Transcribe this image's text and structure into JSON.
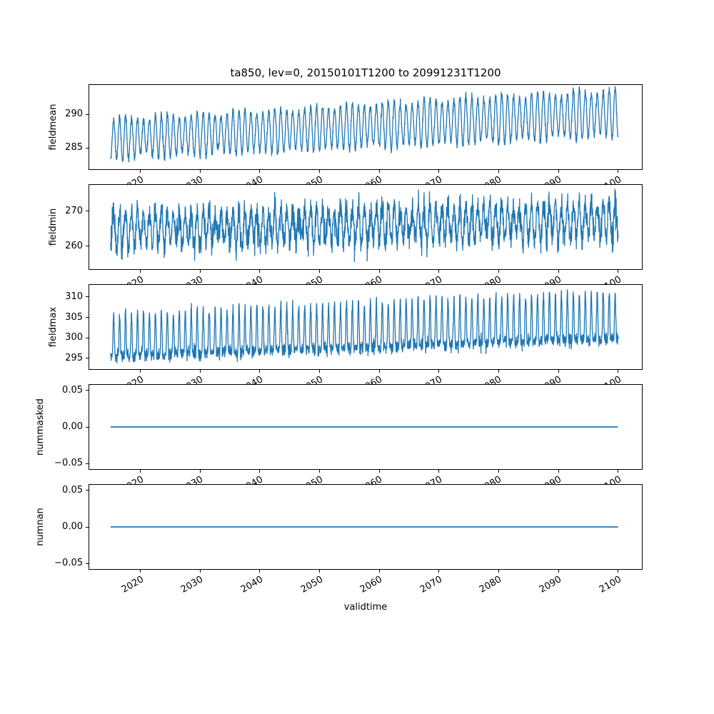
{
  "figure": {
    "title": "ta850, lev=0, 20150101T1200 to 20991231T1200",
    "xlabel": "validtime",
    "background": "#ffffff",
    "line_color": "#1f77b4",
    "axes_color": "#000000",
    "grid": false,
    "legend": "none",
    "xlim": [
      2011.3,
      2104.1
    ],
    "xticks": [
      2020,
      2030,
      2040,
      2050,
      2060,
      2070,
      2080,
      2090,
      2100
    ],
    "xtick_labels": [
      "2020",
      "2030",
      "2040",
      "2050",
      "2060",
      "2070",
      "2080",
      "2090",
      "2100"
    ],
    "time_start": "20150101T1200",
    "time_end": "20991231T1200",
    "variable": "ta850",
    "level": "lev=0"
  },
  "chart_data": [
    {
      "type": "line",
      "name": "fieldmean",
      "ylabel": "fieldmean",
      "ylim": [
        281.7,
        294.5
      ],
      "yticks": [
        285,
        290
      ],
      "ytick_labels": [
        "285",
        "290"
      ],
      "x_start": 2015.0,
      "x_end": 2100.0,
      "value_range_at_start": [
        282.5,
        289.3
      ],
      "value_range_at_end": [
        286.3,
        293.9
      ],
      "pattern": "annual sinusoidal cycle with steady upward trend of about +4 K over 2015-2100",
      "generator": {
        "kind": "sin",
        "seed": 11,
        "samples_per_year": 30,
        "baseline_start": 286.3,
        "baseline_end": 290.2,
        "season_amp_start": 2.9,
        "season_amp_end": 3.4,
        "phase": 0.25,
        "noise_sd": 0.32,
        "clip": [
          282.2,
          294.2
        ]
      }
    },
    {
      "type": "line",
      "name": "fieldmin",
      "ylabel": "fieldmin",
      "ylim": [
        253.3,
        277.6
      ],
      "yticks": [
        260,
        270
      ],
      "ytick_labels": [
        "260",
        "270"
      ],
      "x_start": 2015.0,
      "x_end": 2100.0,
      "value_range_at_start": [
        254.5,
        273.5
      ],
      "value_range_at_end": [
        257.5,
        277.0
      ],
      "pattern": "very noisy annual cycle, dense band roughly 259-272 with downward spikes, slight upward trend",
      "generator": {
        "kind": "sin",
        "seed": 22,
        "samples_per_year": 30,
        "baseline_start": 264.8,
        "baseline_end": 267.4,
        "season_amp_start": 4.3,
        "season_amp_end": 4.7,
        "phase": 0.25,
        "noise_sd": 1.9,
        "spike_prob": 0.03,
        "spike_scale": -3.5,
        "clip": [
          254.4,
          277.4
        ]
      }
    },
    {
      "type": "line",
      "name": "fieldmax",
      "ylabel": "fieldmax",
      "ylim": [
        292.2,
        313.1
      ],
      "yticks": [
        295,
        300,
        305,
        310
      ],
      "ytick_labels": [
        "295",
        "300",
        "305",
        "310"
      ],
      "x_start": 2015.0,
      "x_end": 2100.0,
      "value_range_at_start": [
        293.5,
        307.5
      ],
      "value_range_at_end": [
        296.5,
        312.0
      ],
      "pattern": "narrow upward annual peaks above a dense low band; band rises from about 295 to 300, peaks from about 306 to 311",
      "generator": {
        "kind": "peak",
        "seed": 33,
        "samples_per_year": 30,
        "baseline_start": 295.5,
        "baseline_end": 299.9,
        "season_amp_start": 10.3,
        "season_amp_end": 11.6,
        "exponent": 2.2,
        "phase": 0.25,
        "noise_sd": 0.8,
        "clip": [
          293.3,
          312.2
        ]
      }
    },
    {
      "type": "line",
      "name": "nummasked",
      "ylabel": "nummasked",
      "ylim": [
        -0.0585,
        0.0585
      ],
      "yticks": [
        -0.05,
        0.0,
        0.05
      ],
      "ytick_labels": [
        "−0.05",
        "0.00",
        "0.05"
      ],
      "x_start": 2015.0,
      "x_end": 2100.0,
      "value_range_at_start": [
        0,
        0
      ],
      "value_range_at_end": [
        0,
        0
      ],
      "pattern": "constant zero line",
      "generator": {
        "kind": "flat",
        "value": 0.0
      }
    },
    {
      "type": "line",
      "name": "numnan",
      "ylabel": "numnan",
      "ylim": [
        -0.0585,
        0.0585
      ],
      "yticks": [
        -0.05,
        0.0,
        0.05
      ],
      "ytick_labels": [
        "−0.05",
        "0.00",
        "0.05"
      ],
      "x_start": 2015.0,
      "x_end": 2100.0,
      "value_range_at_start": [
        0,
        0
      ],
      "value_range_at_end": [
        0,
        0
      ],
      "pattern": "constant zero line",
      "generator": {
        "kind": "flat",
        "value": 0.0
      }
    }
  ]
}
